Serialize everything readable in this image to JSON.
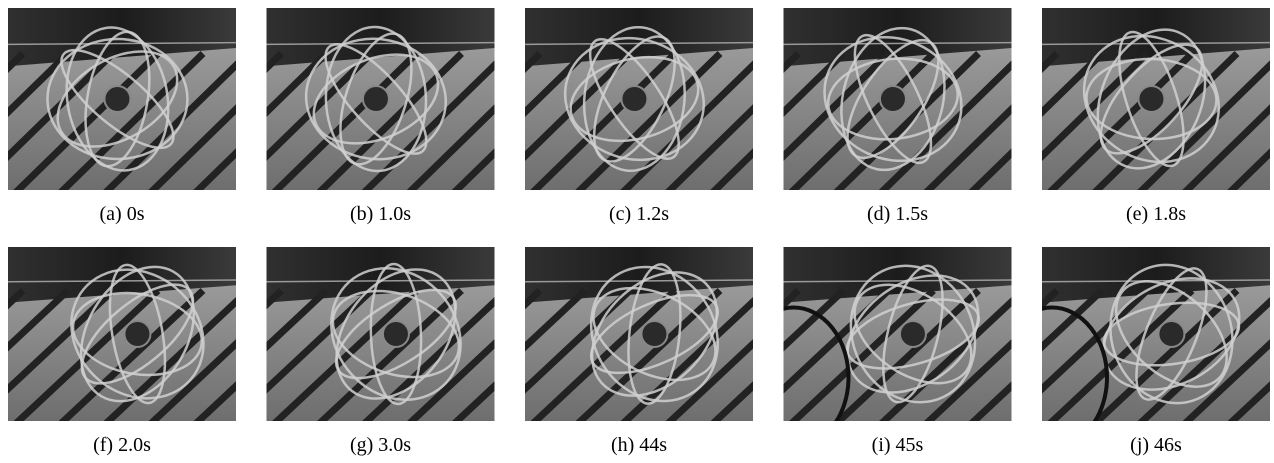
{
  "figure": {
    "captions": [
      "(a) 0s",
      "(b) 1.0s",
      "(c) 1.2s",
      "(d) 1.5s",
      "(e) 1.8s",
      "(f) 2.0s",
      "(g) 3.0s",
      "(h) 44s",
      "(i) 45s",
      "(j) 46s"
    ]
  }
}
